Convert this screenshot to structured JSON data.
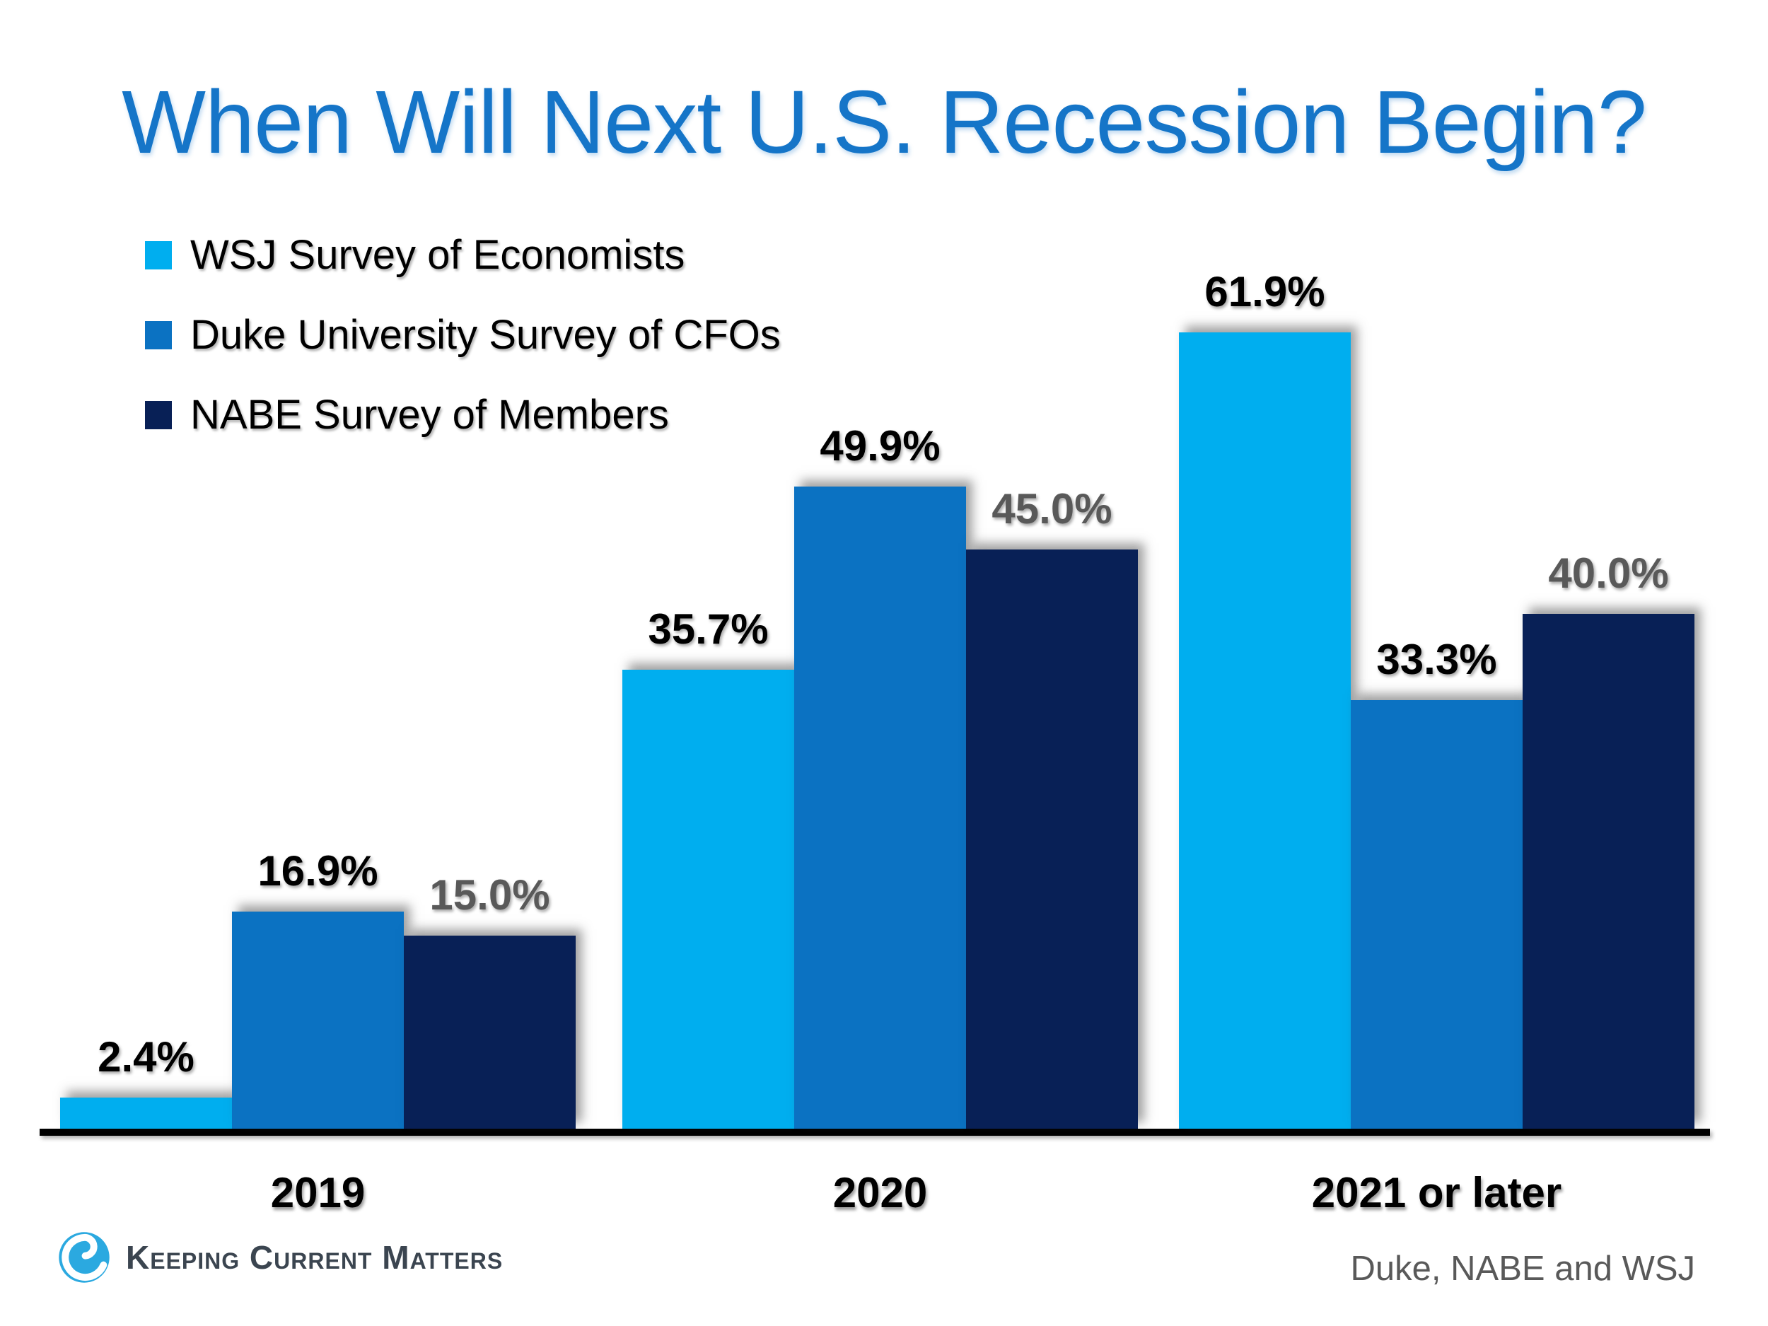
{
  "title": "When Will Next U.S. Recession Begin?",
  "colors": {
    "title_blue": "#1575C8",
    "series_label_dark": "#000000",
    "series_label_gray": "#595959",
    "axis_black": "#000000",
    "brand_text": "#3B4550",
    "brand_icon_blue": "#2BA9E0"
  },
  "chart_data": {
    "type": "bar",
    "categories": [
      "2019",
      "2020",
      "2021 or later"
    ],
    "series": [
      {
        "name": "WSJ Survey of Economists",
        "color": "#00AEEF",
        "label_color": "#000000",
        "values": [
          2.4,
          35.7,
          61.9
        ]
      },
      {
        "name": "Duke University Survey of CFOs",
        "color": "#0B72C2",
        "label_color": "#000000",
        "values": [
          16.9,
          49.9,
          33.3
        ]
      },
      {
        "name": "NABE Survey of Members",
        "color": "#082056",
        "label_color": "#595959",
        "values": [
          15.0,
          45.0,
          40.0
        ]
      }
    ],
    "value_suffix": "%",
    "data_labels": [
      "2.4%",
      "16.9%",
      "15.0%",
      "35.7%",
      "49.9%",
      "45.0%",
      "61.9%",
      "33.3%",
      "40.0%"
    ],
    "title": "When Will Next U.S. Recession Begin?",
    "xlabel": "",
    "ylabel": "",
    "ylim": [
      0,
      65
    ],
    "grid": false,
    "y_axis_visible": false,
    "legend_position": "top-left"
  },
  "footer": {
    "brand": "Keeping Current Matters",
    "source": "Duke, NABE and WSJ"
  }
}
